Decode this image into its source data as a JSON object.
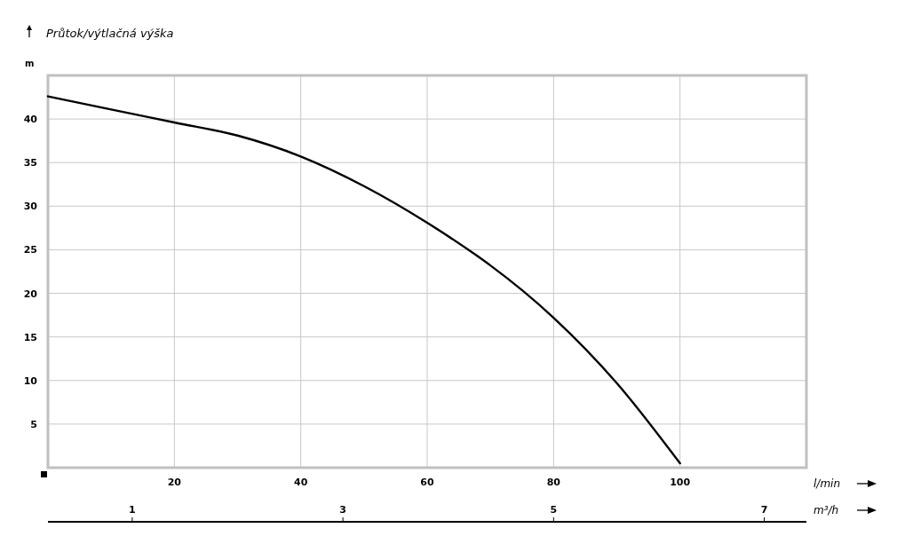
{
  "chart_data": {
    "type": "line",
    "ylabel": "Průtok/výtlačná výška",
    "xlabel": "l/min",
    "x2label": "m³/h",
    "annotations": [
      "m"
    ],
    "x": [
      0,
      10,
      20,
      30,
      40,
      50,
      60,
      67.5,
      70,
      80,
      90,
      100
    ],
    "series": [
      {
        "color": "#000000",
        "values": [
          42.6,
          41.1,
          39.6,
          38.1,
          35.7,
          32.3,
          28.1,
          24.5,
          23.2,
          17.2,
          9.7,
          0.5
        ]
      }
    ],
    "xlim": [
      0,
      120
    ],
    "xticks": [
      20,
      40,
      60,
      80,
      100
    ],
    "ylim": [
      0,
      45
    ],
    "yticks": [
      5,
      10,
      15,
      20,
      25,
      30,
      35,
      40
    ],
    "x2lim": [
      0.2,
      7.4
    ],
    "x2ticks": [
      1,
      3,
      5,
      7
    ],
    "grid": true,
    "marker": "none",
    "line_style": "solid"
  }
}
